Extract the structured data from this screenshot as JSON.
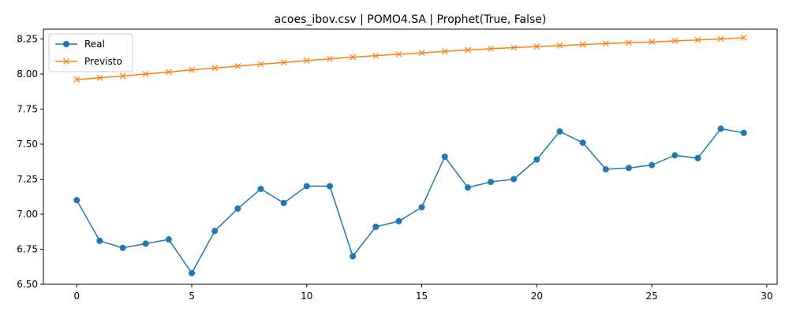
{
  "chart_data": {
    "type": "line",
    "title": "acoes_ibov.csv | POMO4.SA | Prophet(True, False)",
    "xlabel": "",
    "ylabel": "",
    "x": [
      0,
      1,
      2,
      3,
      4,
      5,
      6,
      7,
      8,
      9,
      10,
      11,
      12,
      13,
      14,
      15,
      16,
      17,
      18,
      19,
      20,
      21,
      22,
      23,
      24,
      25,
      26,
      27,
      28,
      29
    ],
    "xlim": [
      -1.45,
      30.45
    ],
    "ylim": [
      6.5,
      8.32
    ],
    "x_ticks": [
      0,
      5,
      10,
      15,
      20,
      25,
      30
    ],
    "y_ticks": [
      6.5,
      6.75,
      7.0,
      7.25,
      7.5,
      7.75,
      8.0,
      8.25
    ],
    "y_tick_labels": [
      "6.50",
      "6.75",
      "7.00",
      "7.25",
      "7.50",
      "7.75",
      "8.00",
      "8.25"
    ],
    "grid": false,
    "legend_position": "upper left",
    "series": [
      {
        "name": "Real",
        "color": "#1f77b4",
        "marker": "circle",
        "values": [
          7.1,
          6.81,
          6.76,
          6.79,
          6.82,
          6.58,
          6.88,
          7.04,
          7.18,
          7.08,
          7.2,
          7.2,
          6.7,
          6.91,
          6.95,
          7.05,
          7.41,
          7.19,
          7.23,
          7.25,
          7.39,
          7.59,
          7.51,
          7.32,
          7.33,
          7.35,
          7.42,
          7.4,
          7.61,
          7.58
        ]
      },
      {
        "name": "Previsto",
        "color": "#ff7f0e",
        "marker": "x",
        "values": [
          7.96,
          7.973,
          7.986,
          8.0,
          8.014,
          8.029,
          8.043,
          8.056,
          8.07,
          8.082,
          8.095,
          8.108,
          8.12,
          8.131,
          8.141,
          8.151,
          8.161,
          8.171,
          8.18,
          8.188,
          8.196,
          8.203,
          8.21,
          8.217,
          8.223,
          8.229,
          8.236,
          8.243,
          8.25,
          8.259
        ]
      }
    ]
  }
}
